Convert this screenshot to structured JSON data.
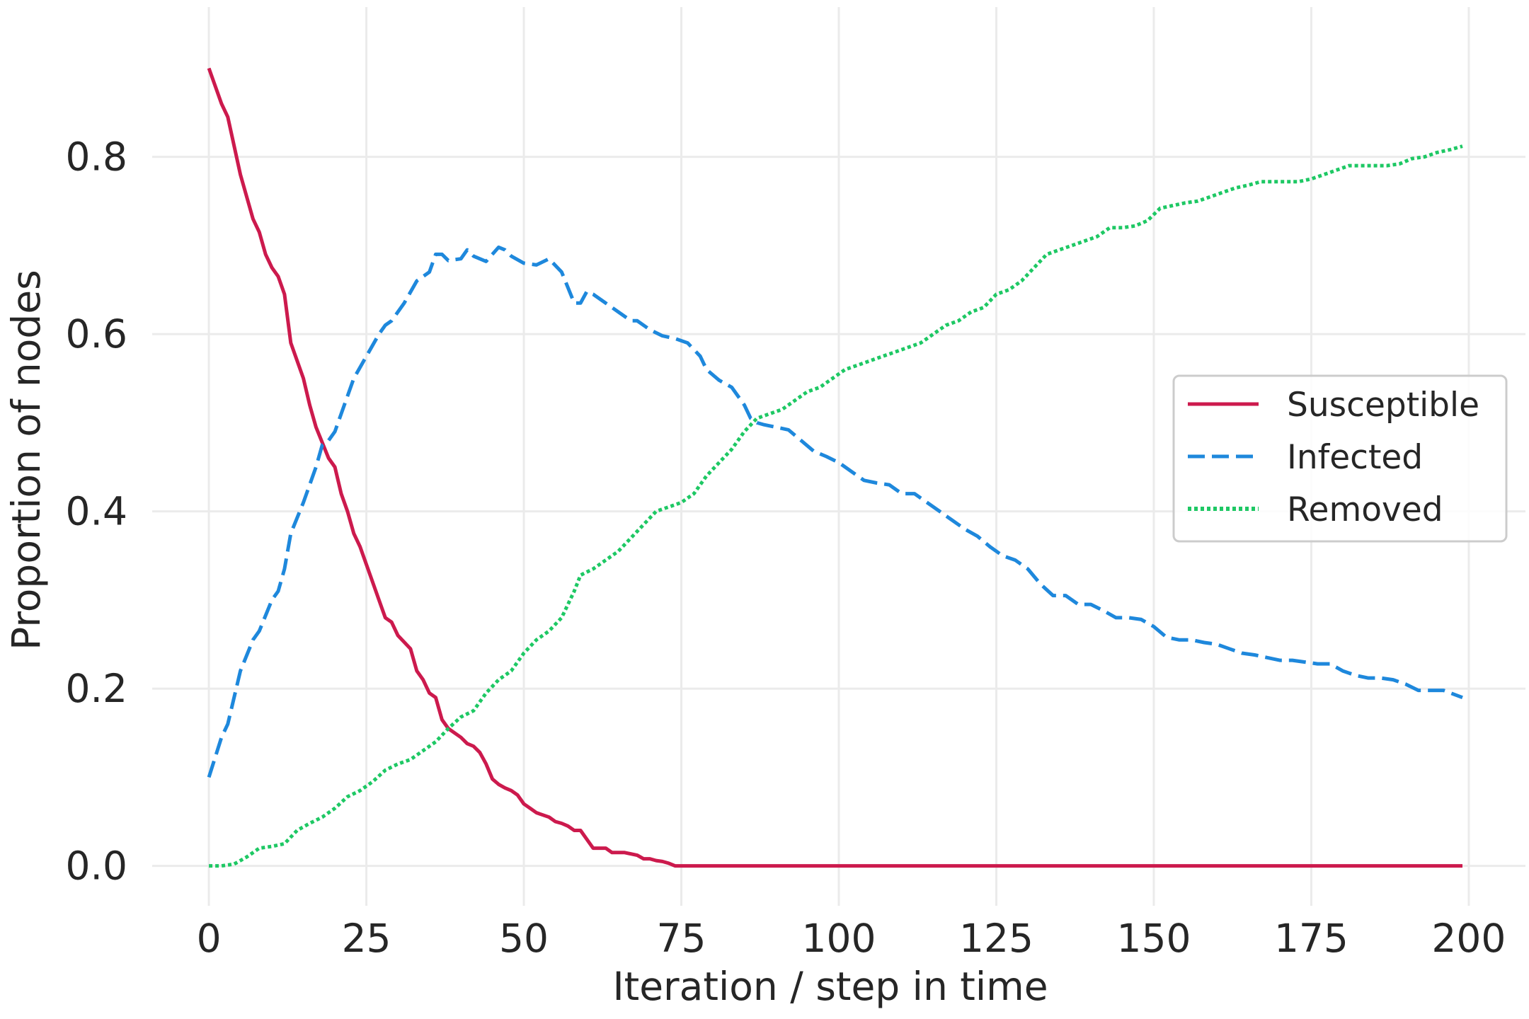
{
  "chart_data": {
    "type": "line",
    "title": "",
    "xlabel": "Iteration / step in time",
    "ylabel": "Proportion of nodes",
    "xlim": [
      -9,
      209
    ],
    "ylim": [
      -0.045,
      0.945
    ],
    "xticks": [
      0,
      25,
      50,
      75,
      100,
      125,
      150,
      175,
      200
    ],
    "xtick_labels": [
      "0",
      "25",
      "50",
      "75",
      "100",
      "125",
      "150",
      "175",
      "200"
    ],
    "yticks": [
      0.0,
      0.2,
      0.4,
      0.6,
      0.8
    ],
    "ytick_labels": [
      "0.0",
      "0.2",
      "0.4",
      "0.6",
      "0.8"
    ],
    "grid": true,
    "legend_position": "center-right",
    "series": [
      {
        "name": "Susceptible",
        "color": "#cc1a4d",
        "dash": "solid",
        "points": [
          [
            0,
            0.9
          ],
          [
            2,
            0.86
          ],
          [
            3,
            0.845
          ],
          [
            5,
            0.78
          ],
          [
            7,
            0.73
          ],
          [
            8,
            0.715
          ],
          [
            9,
            0.69
          ],
          [
            10,
            0.675
          ],
          [
            11,
            0.665
          ],
          [
            12,
            0.645
          ],
          [
            13,
            0.59
          ],
          [
            15,
            0.55
          ],
          [
            16,
            0.52
          ],
          [
            17,
            0.495
          ],
          [
            19,
            0.46
          ],
          [
            20,
            0.45
          ],
          [
            21,
            0.42
          ],
          [
            22,
            0.4
          ],
          [
            23,
            0.375
          ],
          [
            24,
            0.36
          ],
          [
            26,
            0.32
          ],
          [
            27,
            0.3
          ],
          [
            28,
            0.28
          ],
          [
            29,
            0.275
          ],
          [
            30,
            0.26
          ],
          [
            32,
            0.245
          ],
          [
            33,
            0.22
          ],
          [
            34,
            0.21
          ],
          [
            35,
            0.195
          ],
          [
            36,
            0.19
          ],
          [
            37,
            0.165
          ],
          [
            38,
            0.155
          ],
          [
            40,
            0.145
          ],
          [
            41,
            0.138
          ],
          [
            42,
            0.135
          ],
          [
            43,
            0.128
          ],
          [
            44,
            0.115
          ],
          [
            45,
            0.098
          ],
          [
            46,
            0.092
          ],
          [
            47,
            0.088
          ],
          [
            48,
            0.085
          ],
          [
            49,
            0.08
          ],
          [
            50,
            0.07
          ],
          [
            51,
            0.065
          ],
          [
            52,
            0.06
          ],
          [
            54,
            0.055
          ],
          [
            55,
            0.05
          ],
          [
            56,
            0.048
          ],
          [
            57,
            0.045
          ],
          [
            58,
            0.04
          ],
          [
            59,
            0.04
          ],
          [
            60,
            0.03
          ],
          [
            61,
            0.02
          ],
          [
            62,
            0.02
          ],
          [
            63,
            0.02
          ],
          [
            64,
            0.015
          ],
          [
            66,
            0.015
          ],
          [
            68,
            0.012
          ],
          [
            69,
            0.008
          ],
          [
            70,
            0.008
          ],
          [
            71,
            0.006
          ],
          [
            72,
            0.005
          ],
          [
            73,
            0.003
          ],
          [
            74,
            0.0
          ],
          [
            75,
            0.0
          ],
          [
            100,
            0.0
          ],
          [
            150,
            0.0
          ],
          [
            199,
            0.0
          ]
        ]
      },
      {
        "name": "Infected",
        "color": "#1e88dc",
        "dash": "dashed",
        "points": [
          [
            0,
            0.1
          ],
          [
            2,
            0.145
          ],
          [
            3,
            0.16
          ],
          [
            5,
            0.22
          ],
          [
            7,
            0.255
          ],
          [
            8,
            0.265
          ],
          [
            10,
            0.3
          ],
          [
            11,
            0.31
          ],
          [
            12,
            0.335
          ],
          [
            13,
            0.375
          ],
          [
            15,
            0.41
          ],
          [
            17,
            0.45
          ],
          [
            18,
            0.475
          ],
          [
            19,
            0.48
          ],
          [
            20,
            0.49
          ],
          [
            21,
            0.51
          ],
          [
            23,
            0.55
          ],
          [
            25,
            0.575
          ],
          [
            27,
            0.6
          ],
          [
            28,
            0.61
          ],
          [
            29,
            0.615
          ],
          [
            31,
            0.635
          ],
          [
            33,
            0.66
          ],
          [
            35,
            0.67
          ],
          [
            36,
            0.69
          ],
          [
            37,
            0.69
          ],
          [
            38,
            0.683
          ],
          [
            40,
            0.685
          ],
          [
            41,
            0.695
          ],
          [
            42,
            0.688
          ],
          [
            43,
            0.685
          ],
          [
            44,
            0.682
          ],
          [
            46,
            0.698
          ],
          [
            47,
            0.695
          ],
          [
            48,
            0.688
          ],
          [
            50,
            0.68
          ],
          [
            52,
            0.678
          ],
          [
            54,
            0.685
          ],
          [
            56,
            0.67
          ],
          [
            58,
            0.635
          ],
          [
            59,
            0.635
          ],
          [
            60,
            0.648
          ],
          [
            61,
            0.645
          ],
          [
            63,
            0.635
          ],
          [
            65,
            0.625
          ],
          [
            67,
            0.615
          ],
          [
            68,
            0.615
          ],
          [
            70,
            0.605
          ],
          [
            72,
            0.598
          ],
          [
            74,
            0.595
          ],
          [
            76,
            0.59
          ],
          [
            78,
            0.575
          ],
          [
            79,
            0.56
          ],
          [
            81,
            0.548
          ],
          [
            83,
            0.54
          ],
          [
            85,
            0.52
          ],
          [
            86,
            0.505
          ],
          [
            87,
            0.5
          ],
          [
            88,
            0.498
          ],
          [
            90,
            0.495
          ],
          [
            92,
            0.492
          ],
          [
            94,
            0.48
          ],
          [
            96,
            0.468
          ],
          [
            98,
            0.462
          ],
          [
            100,
            0.455
          ],
          [
            102,
            0.445
          ],
          [
            104,
            0.435
          ],
          [
            106,
            0.432
          ],
          [
            108,
            0.43
          ],
          [
            110,
            0.42
          ],
          [
            112,
            0.42
          ],
          [
            114,
            0.41
          ],
          [
            116,
            0.4
          ],
          [
            118,
            0.39
          ],
          [
            120,
            0.38
          ],
          [
            122,
            0.372
          ],
          [
            124,
            0.36
          ],
          [
            126,
            0.35
          ],
          [
            128,
            0.345
          ],
          [
            130,
            0.335
          ],
          [
            132,
            0.318
          ],
          [
            134,
            0.305
          ],
          [
            136,
            0.305
          ],
          [
            138,
            0.295
          ],
          [
            140,
            0.295
          ],
          [
            142,
            0.288
          ],
          [
            144,
            0.28
          ],
          [
            146,
            0.28
          ],
          [
            148,
            0.278
          ],
          [
            150,
            0.27
          ],
          [
            152,
            0.258
          ],
          [
            154,
            0.255
          ],
          [
            156,
            0.255
          ],
          [
            158,
            0.252
          ],
          [
            160,
            0.25
          ],
          [
            162,
            0.245
          ],
          [
            164,
            0.24
          ],
          [
            166,
            0.238
          ],
          [
            168,
            0.235
          ],
          [
            170,
            0.232
          ],
          [
            172,
            0.232
          ],
          [
            174,
            0.23
          ],
          [
            176,
            0.228
          ],
          [
            178,
            0.228
          ],
          [
            180,
            0.22
          ],
          [
            182,
            0.215
          ],
          [
            184,
            0.212
          ],
          [
            186,
            0.212
          ],
          [
            188,
            0.21
          ],
          [
            190,
            0.205
          ],
          [
            192,
            0.198
          ],
          [
            194,
            0.198
          ],
          [
            196,
            0.198
          ],
          [
            199,
            0.19
          ]
        ]
      },
      {
        "name": "Removed",
        "color": "#1ec864",
        "dash": "dotted",
        "points": [
          [
            0,
            0.0
          ],
          [
            2,
            0.0
          ],
          [
            4,
            0.002
          ],
          [
            6,
            0.01
          ],
          [
            8,
            0.02
          ],
          [
            10,
            0.022
          ],
          [
            12,
            0.025
          ],
          [
            14,
            0.04
          ],
          [
            16,
            0.048
          ],
          [
            18,
            0.055
          ],
          [
            20,
            0.065
          ],
          [
            22,
            0.078
          ],
          [
            24,
            0.085
          ],
          [
            26,
            0.095
          ],
          [
            28,
            0.108
          ],
          [
            30,
            0.115
          ],
          [
            32,
            0.12
          ],
          [
            34,
            0.13
          ],
          [
            36,
            0.14
          ],
          [
            38,
            0.155
          ],
          [
            40,
            0.168
          ],
          [
            42,
            0.175
          ],
          [
            44,
            0.195
          ],
          [
            46,
            0.21
          ],
          [
            48,
            0.22
          ],
          [
            50,
            0.24
          ],
          [
            52,
            0.255
          ],
          [
            54,
            0.265
          ],
          [
            56,
            0.28
          ],
          [
            58,
            0.31
          ],
          [
            59,
            0.328
          ],
          [
            61,
            0.335
          ],
          [
            63,
            0.345
          ],
          [
            65,
            0.355
          ],
          [
            67,
            0.37
          ],
          [
            69,
            0.385
          ],
          [
            71,
            0.4
          ],
          [
            73,
            0.405
          ],
          [
            75,
            0.41
          ],
          [
            77,
            0.42
          ],
          [
            79,
            0.44
          ],
          [
            81,
            0.455
          ],
          [
            83,
            0.47
          ],
          [
            85,
            0.49
          ],
          [
            87,
            0.505
          ],
          [
            89,
            0.51
          ],
          [
            91,
            0.515
          ],
          [
            93,
            0.525
          ],
          [
            95,
            0.535
          ],
          [
            97,
            0.54
          ],
          [
            99,
            0.55
          ],
          [
            101,
            0.56
          ],
          [
            103,
            0.565
          ],
          [
            105,
            0.57
          ],
          [
            107,
            0.575
          ],
          [
            109,
            0.58
          ],
          [
            111,
            0.585
          ],
          [
            113,
            0.59
          ],
          [
            115,
            0.6
          ],
          [
            117,
            0.61
          ],
          [
            119,
            0.615
          ],
          [
            121,
            0.625
          ],
          [
            123,
            0.63
          ],
          [
            125,
            0.645
          ],
          [
            127,
            0.65
          ],
          [
            129,
            0.66
          ],
          [
            131,
            0.675
          ],
          [
            133,
            0.69
          ],
          [
            135,
            0.695
          ],
          [
            137,
            0.7
          ],
          [
            139,
            0.705
          ],
          [
            141,
            0.71
          ],
          [
            143,
            0.72
          ],
          [
            145,
            0.72
          ],
          [
            147,
            0.722
          ],
          [
            149,
            0.728
          ],
          [
            151,
            0.742
          ],
          [
            153,
            0.745
          ],
          [
            155,
            0.748
          ],
          [
            157,
            0.75
          ],
          [
            159,
            0.755
          ],
          [
            161,
            0.76
          ],
          [
            163,
            0.765
          ],
          [
            165,
            0.768
          ],
          [
            167,
            0.772
          ],
          [
            169,
            0.772
          ],
          [
            171,
            0.772
          ],
          [
            173,
            0.772
          ],
          [
            175,
            0.775
          ],
          [
            177,
            0.78
          ],
          [
            179,
            0.785
          ],
          [
            181,
            0.79
          ],
          [
            183,
            0.79
          ],
          [
            185,
            0.79
          ],
          [
            187,
            0.79
          ],
          [
            189,
            0.792
          ],
          [
            191,
            0.798
          ],
          [
            193,
            0.8
          ],
          [
            195,
            0.805
          ],
          [
            197,
            0.808
          ],
          [
            199,
            0.812
          ]
        ]
      }
    ]
  }
}
